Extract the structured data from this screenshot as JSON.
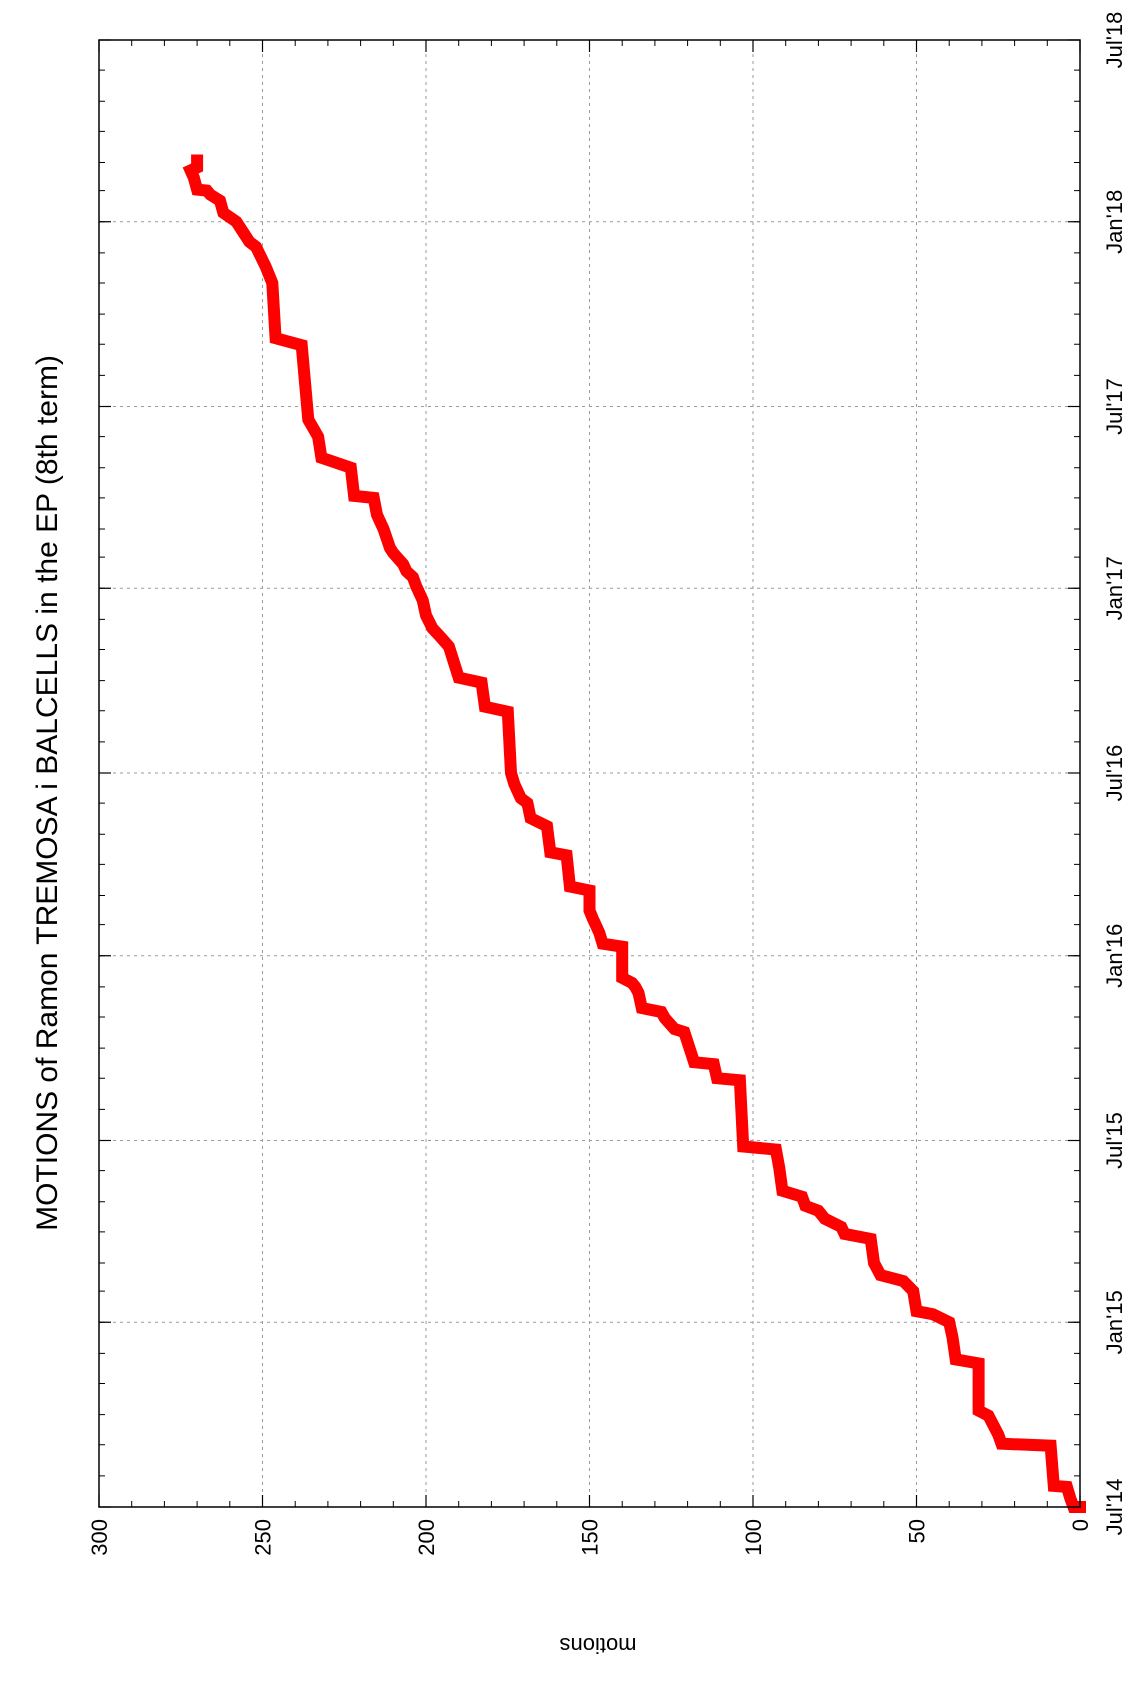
{
  "chart_data": {
    "type": "line",
    "title": "MOTIONS of Ramon TREMOSA i BALCELLS in the EP (8th term)",
    "ylabel": "motions",
    "xlabel": "",
    "ylim": [
      0,
      300
    ],
    "xlim": [
      "2014-07-01",
      "2018-07-01"
    ],
    "grid": true,
    "y_ticks": [
      0,
      50,
      100,
      150,
      200,
      250,
      300
    ],
    "x_ticks": [
      {
        "date": "2014-07-01",
        "label": "Jul'14"
      },
      {
        "date": "2015-01-01",
        "label": "Jan'15"
      },
      {
        "date": "2015-07-01",
        "label": "Jul'15"
      },
      {
        "date": "2016-01-01",
        "label": "Jan'16"
      },
      {
        "date": "2016-07-01",
        "label": "Jul'16"
      },
      {
        "date": "2017-01-01",
        "label": "Jan'17"
      },
      {
        "date": "2017-07-01",
        "label": "Jul'17"
      },
      {
        "date": "2018-01-01",
        "label": "Jan'18"
      },
      {
        "date": "2018-07-01",
        "label": "Jul'18"
      }
    ],
    "series": [
      {
        "color": "#ff0000",
        "points": [
          [
            "2014-07-01",
            0
          ],
          [
            "2014-07-01",
            2
          ],
          [
            "2014-07-10",
            3
          ],
          [
            "2014-07-21",
            4
          ],
          [
            "2014-07-22",
            8
          ],
          [
            "2014-08-31",
            9
          ],
          [
            "2014-09-02",
            24
          ],
          [
            "2014-09-11",
            25
          ],
          [
            "2014-09-30",
            28
          ],
          [
            "2014-10-05",
            31
          ],
          [
            "2014-11-21",
            31
          ],
          [
            "2014-11-25",
            38
          ],
          [
            "2014-12-17",
            39
          ],
          [
            "2015-01-01",
            40
          ],
          [
            "2015-01-09",
            45
          ],
          [
            "2015-01-12",
            50
          ],
          [
            "2015-02-01",
            51
          ],
          [
            "2015-02-11",
            54
          ],
          [
            "2015-02-17",
            61
          ],
          [
            "2015-03-01",
            63
          ],
          [
            "2015-03-25",
            64
          ],
          [
            "2015-03-30",
            72
          ],
          [
            "2015-04-06",
            73
          ],
          [
            "2015-04-14",
            78
          ],
          [
            "2015-04-22",
            80
          ],
          [
            "2015-04-27",
            84
          ],
          [
            "2015-05-06",
            85
          ],
          [
            "2015-05-12",
            91
          ],
          [
            "2015-06-04",
            92
          ],
          [
            "2015-06-22",
            93
          ],
          [
            "2015-06-25",
            103
          ],
          [
            "2015-08-30",
            104
          ],
          [
            "2015-09-01",
            111
          ],
          [
            "2015-09-15",
            112
          ],
          [
            "2015-09-17",
            118
          ],
          [
            "2015-10-17",
            121
          ],
          [
            "2015-10-20",
            124
          ],
          [
            "2015-10-31",
            127
          ],
          [
            "2015-11-06",
            128
          ],
          [
            "2015-11-10",
            134
          ],
          [
            "2015-11-25",
            135
          ],
          [
            "2015-12-01",
            136
          ],
          [
            "2015-12-05",
            137
          ],
          [
            "2015-12-10",
            140
          ],
          [
            "2016-01-10",
            140
          ],
          [
            "2016-01-13",
            146
          ],
          [
            "2016-01-24",
            147
          ],
          [
            "2016-02-07",
            149
          ],
          [
            "2016-02-15",
            150
          ],
          [
            "2016-03-06",
            150
          ],
          [
            "2016-03-10",
            156
          ],
          [
            "2016-04-10",
            157
          ],
          [
            "2016-04-13",
            162
          ],
          [
            "2016-05-09",
            163
          ],
          [
            "2016-05-17",
            168
          ],
          [
            "2016-06-01",
            169
          ],
          [
            "2016-06-06",
            171
          ],
          [
            "2016-06-20",
            173
          ],
          [
            "2016-07-01",
            174
          ],
          [
            "2016-08-31",
            175
          ],
          [
            "2016-09-05",
            182
          ],
          [
            "2016-09-29",
            183
          ],
          [
            "2016-10-04",
            190
          ],
          [
            "2016-11-04",
            193
          ],
          [
            "2016-11-15",
            196
          ],
          [
            "2016-11-22",
            198
          ],
          [
            "2016-12-05",
            200
          ],
          [
            "2016-12-20",
            201
          ],
          [
            "2017-01-03",
            203
          ],
          [
            "2017-01-12",
            204
          ],
          [
            "2017-01-18",
            206
          ],
          [
            "2017-01-25",
            207
          ],
          [
            "2017-02-05",
            210
          ],
          [
            "2017-02-10",
            211
          ],
          [
            "2017-03-01",
            213
          ],
          [
            "2017-03-15",
            215
          ],
          [
            "2017-04-01",
            216
          ],
          [
            "2017-04-03",
            222
          ],
          [
            "2017-05-01",
            223
          ],
          [
            "2017-05-11",
            232
          ],
          [
            "2017-06-01",
            233
          ],
          [
            "2017-06-18",
            236
          ],
          [
            "2017-08-31",
            238
          ],
          [
            "2017-09-07",
            246
          ],
          [
            "2017-11-01",
            247
          ],
          [
            "2017-11-17",
            249
          ],
          [
            "2017-12-07",
            252
          ],
          [
            "2017-12-12",
            254
          ],
          [
            "2017-12-22",
            256
          ],
          [
            "2018-01-01",
            258
          ],
          [
            "2018-01-10",
            262
          ],
          [
            "2018-01-22",
            263
          ],
          [
            "2018-01-28",
            266
          ],
          [
            "2018-02-01",
            267
          ],
          [
            "2018-02-02",
            270
          ],
          [
            "2018-02-14",
            271
          ],
          [
            "2018-02-21",
            272
          ],
          [
            "2018-02-24",
            270
          ],
          [
            "2018-03-03",
            270
          ]
        ]
      }
    ]
  }
}
